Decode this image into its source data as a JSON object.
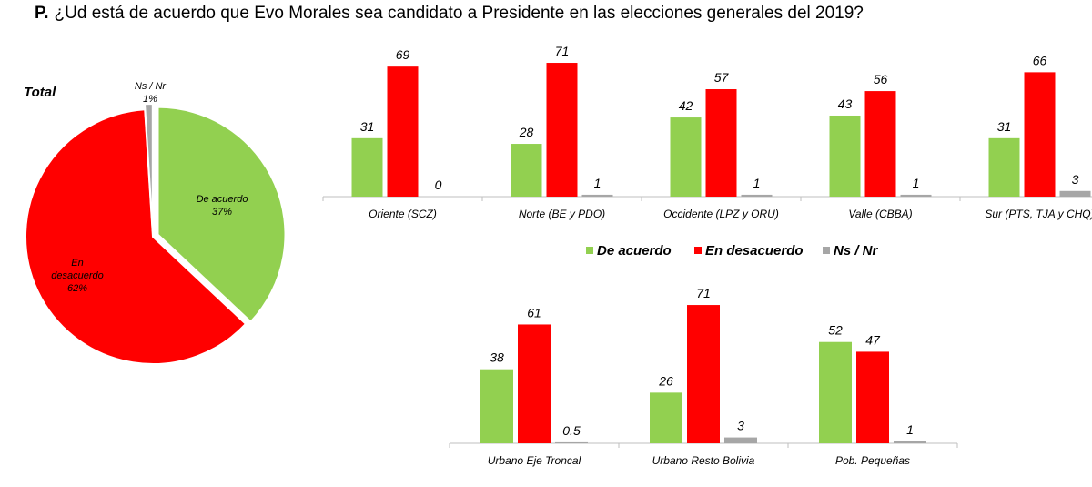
{
  "question": {
    "prefix": "P.",
    "text": "¿Ud está de acuerdo que Evo Morales sea candidato a Presidente en las elecciones generales del 2019?"
  },
  "colors": {
    "de_acuerdo": "#92d050",
    "en_desacuerdo": "#ff0000",
    "ns_nr": "#a6a6a6"
  },
  "legend": [
    "De acuerdo",
    "En desacuerdo",
    "Ns / Nr"
  ],
  "chart_data": [
    {
      "type": "pie",
      "title": "Total",
      "slices": [
        {
          "label": "De acuerdo",
          "value": 37,
          "display": "37%",
          "color": "#92d050"
        },
        {
          "label": "En desacuerdo",
          "value": 62,
          "display": "62%",
          "color": "#ff0000"
        },
        {
          "label": "Ns / Nr",
          "value": 1,
          "display": "1%",
          "color": "#a6a6a6"
        }
      ]
    },
    {
      "type": "bar",
      "categories": [
        "Oriente (SCZ)",
        "Norte (BE y PDO)",
        "Occidente (LPZ y ORU)",
        "Valle  (CBBA)",
        "Sur (PTS, TJA y CHQ)"
      ],
      "series": [
        {
          "name": "De acuerdo",
          "values": [
            31,
            28,
            42,
            43,
            31
          ]
        },
        {
          "name": "En desacuerdo",
          "values": [
            69,
            71,
            57,
            56,
            66
          ]
        },
        {
          "name": "Ns / Nr",
          "values": [
            0,
            1,
            1,
            1,
            3
          ]
        }
      ]
    },
    {
      "type": "bar",
      "categories": [
        "Urbano Eje Troncal",
        "Urbano Resto Bolivia",
        "Pob. Pequeñas"
      ],
      "series": [
        {
          "name": "De acuerdo",
          "values": [
            38,
            26,
            52
          ]
        },
        {
          "name": "En desacuerdo",
          "values": [
            61,
            71,
            47
          ]
        },
        {
          "name": "Ns / Nr",
          "values": [
            0.5,
            3,
            1
          ]
        }
      ]
    }
  ]
}
